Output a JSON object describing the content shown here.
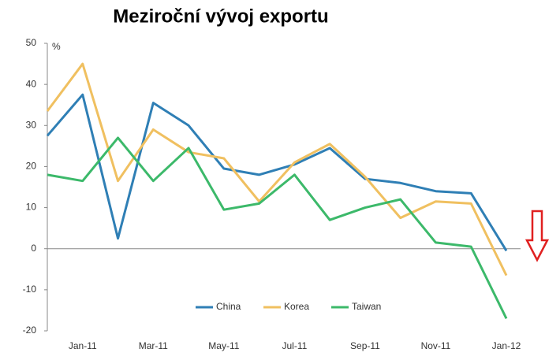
{
  "chart_data": {
    "type": "line",
    "title": "Meziroční vývoj exportu",
    "y_label": "%",
    "categories": [
      null,
      "Jan-11",
      null,
      "Mar-11",
      null,
      "May-11",
      null,
      "Jul-11",
      null,
      "Sep-11",
      null,
      "Nov-11",
      null,
      "Jan-12"
    ],
    "series": [
      {
        "name": "China",
        "color": "#2f7fb5",
        "values": [
          27.5,
          37.5,
          2.5,
          35.5,
          30,
          19.5,
          18,
          20.5,
          24.5,
          17,
          16,
          14,
          13.5,
          -0.5
        ]
      },
      {
        "name": "Korea",
        "color": "#f0c060",
        "values": [
          33.5,
          45,
          16.5,
          29,
          23.5,
          22,
          11.5,
          21,
          25.5,
          17.5,
          7.5,
          11.5,
          11,
          -6.5
        ]
      },
      {
        "name": "Taiwan",
        "color": "#3cb96a",
        "values": [
          18,
          16.5,
          27,
          16.5,
          24.5,
          9.5,
          11,
          18,
          7,
          10,
          12,
          1.5,
          0.5,
          -17
        ]
      }
    ],
    "ylim": [
      -20,
      50
    ],
    "yticks": [
      -20,
      -10,
      0,
      10,
      20,
      30,
      40,
      50
    ],
    "grid": false
  }
}
